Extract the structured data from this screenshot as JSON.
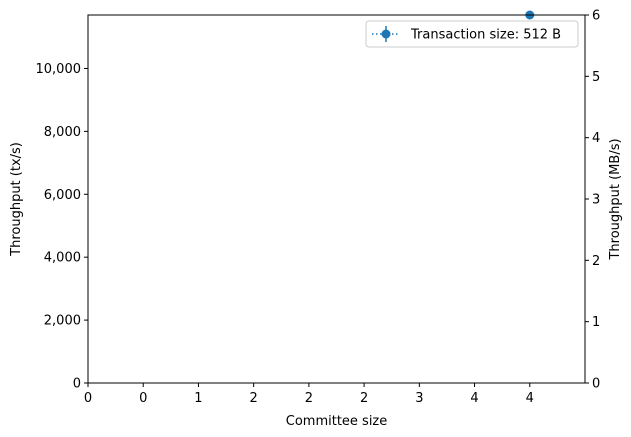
{
  "chart_data": {
    "type": "scatter",
    "title": "",
    "xlabel": "Committee size",
    "ylabel": "Throughput (tx/s)",
    "y2label": "Throughput (MB/s)",
    "xlim": [
      0,
      4.5
    ],
    "ylim": [
      0,
      11700
    ],
    "y2lim": [
      0,
      6
    ],
    "x_tick_values": [
      0,
      0.5,
      1,
      1.5,
      2,
      2.5,
      3,
      3.5,
      4
    ],
    "x_tick_labels": [
      "0",
      "0",
      "1",
      "2",
      "2",
      "2",
      "3",
      "4",
      "4"
    ],
    "y_tick_values": [
      0,
      2000,
      4000,
      6000,
      8000,
      10000
    ],
    "y_tick_labels": [
      "0",
      "2,000",
      "4,000",
      "6,000",
      "8,000",
      "10,000"
    ],
    "y2_tick_values": [
      0,
      1,
      2,
      3,
      4,
      5,
      6
    ],
    "y2_tick_labels": [
      "0",
      "1",
      "2",
      "3",
      "4",
      "5",
      "6"
    ],
    "grid": false,
    "legend_position": "top-right",
    "series": [
      {
        "name": "Transaction size: 512 B",
        "color": "#1f77b4",
        "marker": "circle",
        "line_style": "dotted",
        "x": [
          4
        ],
        "y": [
          11700
        ]
      }
    ]
  }
}
